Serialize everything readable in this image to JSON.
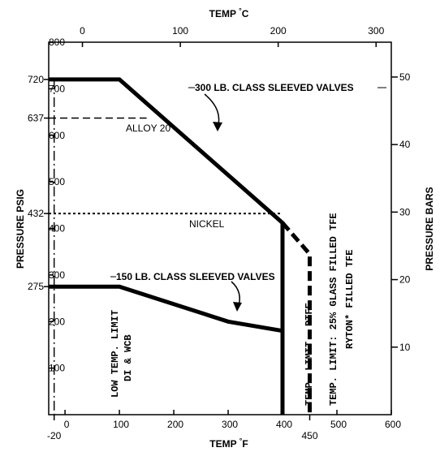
{
  "chart_data": {
    "type": "line",
    "title": "",
    "x_axis": {
      "label_prefix": "TEMP ",
      "label_unit": "°F",
      "range": [
        -30,
        600
      ],
      "ticks": [
        0,
        100,
        200,
        300,
        400,
        500,
        600
      ],
      "extra_ticks": [
        {
          "value": -20,
          "label": "-20"
        },
        {
          "value": 450,
          "label": "450"
        }
      ]
    },
    "x2_axis": {
      "label_prefix": "TEMP ",
      "label_unit": "°C",
      "ticks": [
        0,
        100,
        200,
        300
      ]
    },
    "y_axis": {
      "label": "PRESSURE PSIG",
      "range": [
        0,
        800
      ],
      "ticks": [
        100,
        200,
        300,
        400,
        500,
        600,
        700,
        800
      ],
      "extra_ticks": [
        720,
        637,
        432,
        275
      ]
    },
    "y2_axis": {
      "label": "PRESSURE BARS",
      "ticks": [
        10,
        20,
        30,
        40,
        50
      ]
    },
    "series": [
      {
        "name": "300 LB. CLASS SLEEVED VALVES",
        "style": "solid-thick",
        "points": [
          [
            -30,
            720
          ],
          [
            100,
            720
          ],
          [
            400,
            412
          ],
          [
            400,
            0
          ]
        ]
      },
      {
        "name": "150 LB. CLASS SLEEVED VALVES",
        "style": "solid-thick",
        "points": [
          [
            -30,
            275
          ],
          [
            100,
            275
          ],
          [
            300,
            200
          ],
          [
            400,
            180
          ]
        ]
      },
      {
        "name": "ALLOY 20",
        "style": "dashed",
        "points": [
          [
            -30,
            637
          ],
          [
            150,
            637
          ]
        ]
      },
      {
        "name": "NICKEL",
        "style": "dotted",
        "points": [
          [
            -30,
            432
          ],
          [
            400,
            432
          ]
        ]
      },
      {
        "name": "",
        "style": "dashed-thick",
        "points": [
          [
            400,
            412
          ],
          [
            450,
            345
          ],
          [
            450,
            0
          ]
        ]
      },
      {
        "name": "",
        "style": "dash-dot",
        "points": [
          [
            -20,
            720
          ],
          [
            -20,
            0
          ]
        ]
      }
    ],
    "annotations": [
      {
        "key": "low_temp",
        "lines": [
          "LOW TEMP. LIMIT",
          "DI & WCB"
        ]
      },
      {
        "key": "ptfe",
        "lines": [
          "TEMP. LIMIT",
          "PTFE"
        ]
      },
      {
        "key": "tfe",
        "lines": [
          "TEMP. LIMIT: 25% GLASS FILLED TFE",
          "RYTON* FILLED TFE"
        ]
      }
    ]
  }
}
